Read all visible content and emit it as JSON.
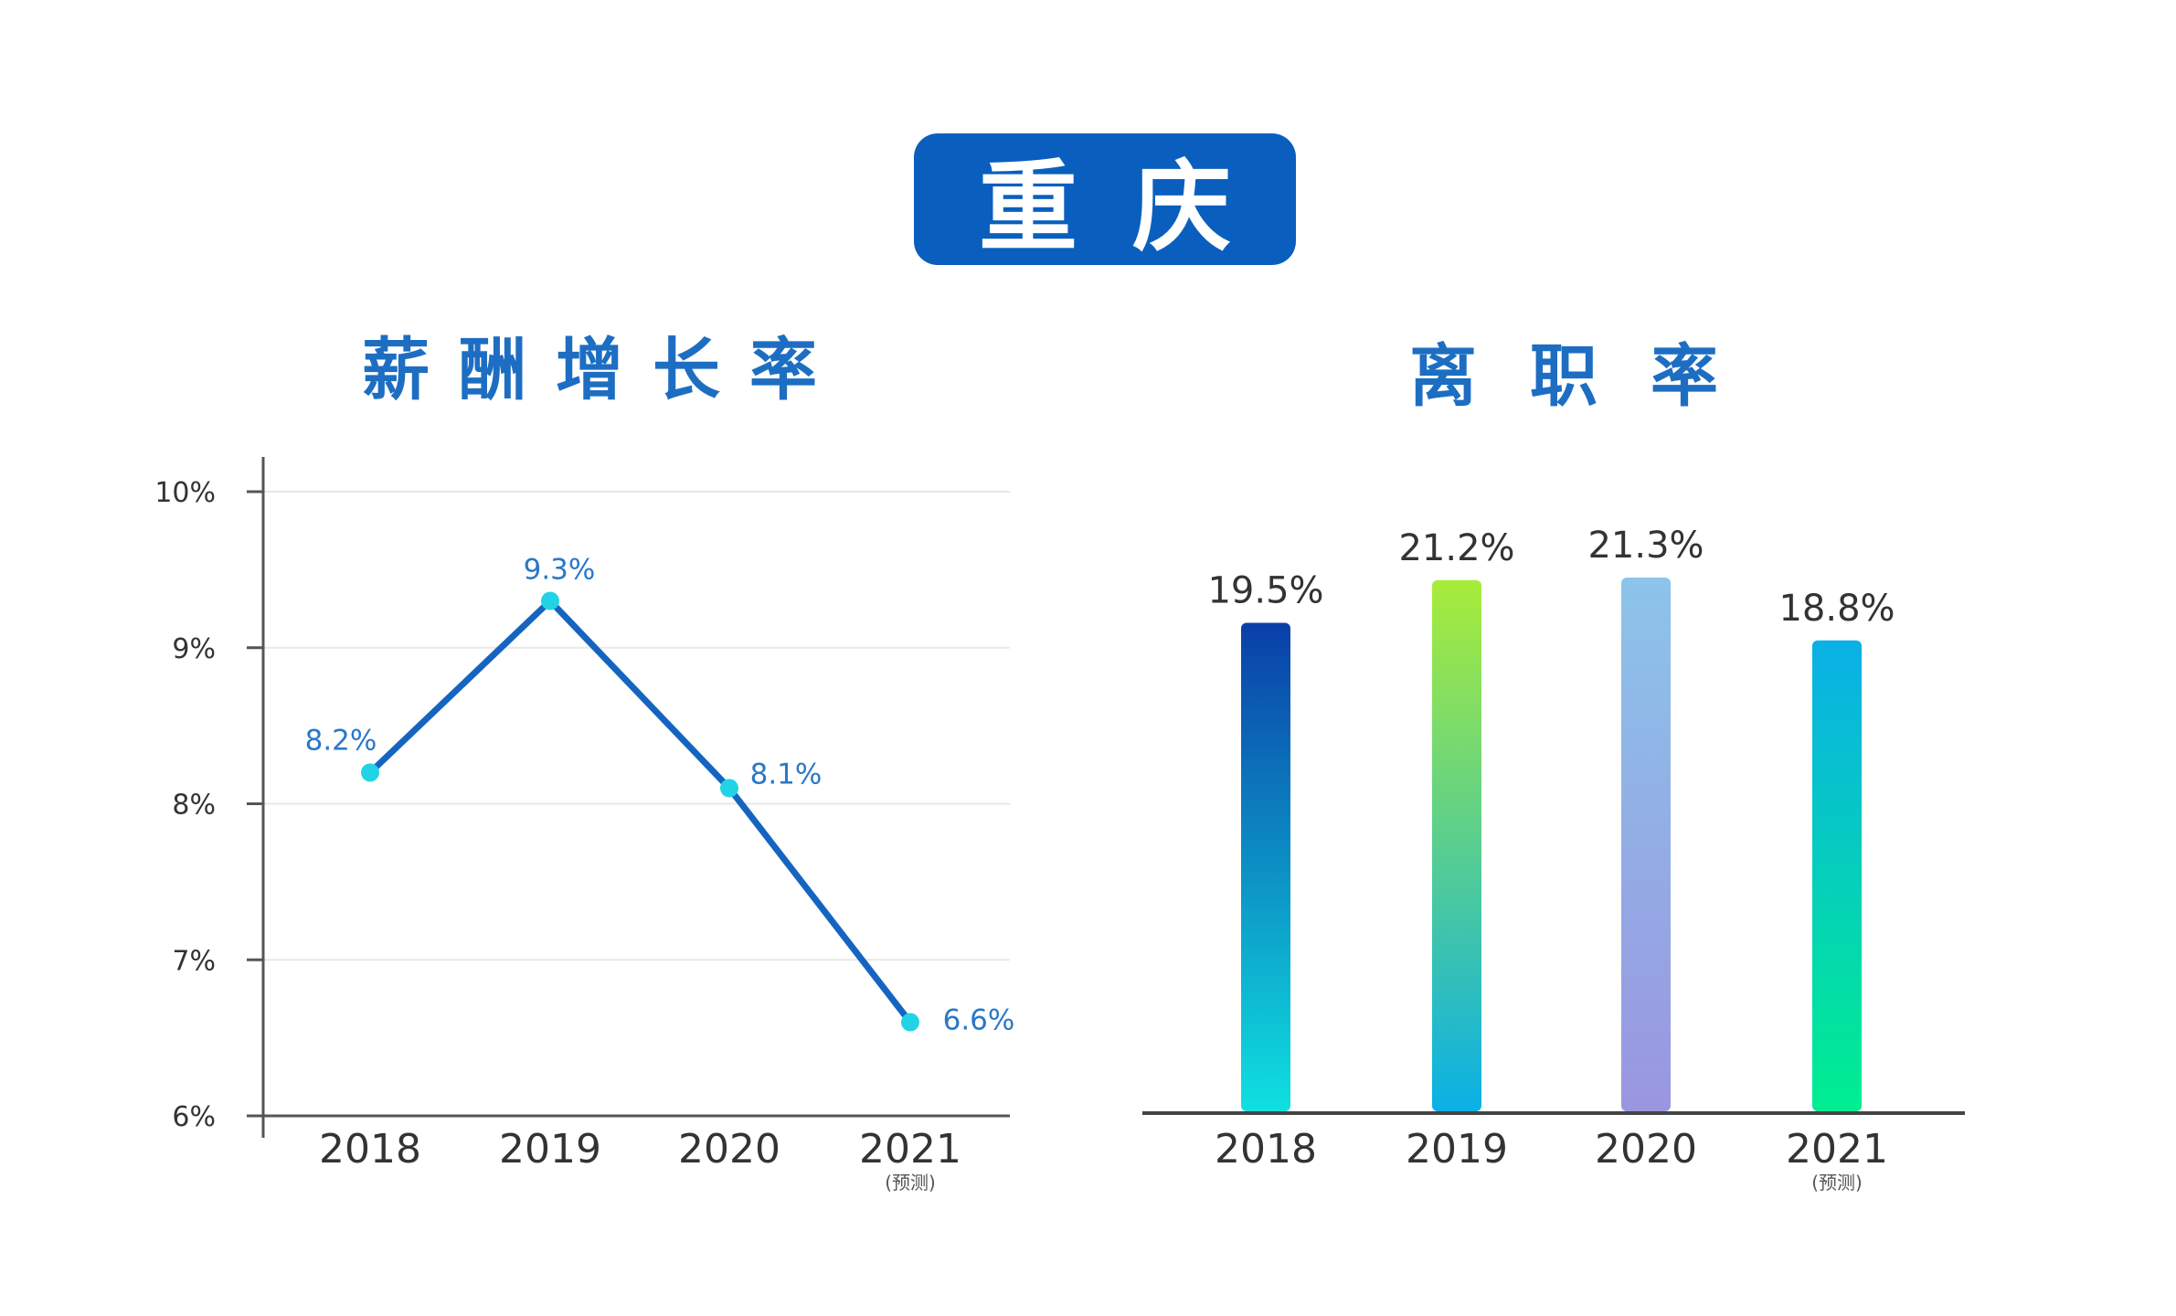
{
  "header": {
    "city": "重庆"
  },
  "chart_data": [
    {
      "type": "line",
      "title": "薪酬增长率",
      "categories": [
        "2018",
        "2019",
        "2020",
        "2021"
      ],
      "category_notes": [
        "",
        "",
        "",
        "(预测)"
      ],
      "values": [
        8.2,
        9.3,
        8.1,
        6.6
      ],
      "value_labels": [
        "8.2%",
        "9.3%",
        "8.1%",
        "6.6%"
      ],
      "ylim": [
        6,
        10
      ],
      "yticks": [
        6,
        7,
        8,
        9,
        10
      ],
      "ytick_labels": [
        "6%",
        "7%",
        "8%",
        "9%",
        "10%"
      ],
      "grid": true,
      "colors": {
        "line": "#1565c0",
        "marker": "#22d3e6",
        "label": "#2a78c8",
        "grid": "#e8e8e8",
        "axis": "#555555"
      }
    },
    {
      "type": "bar",
      "title": "离职率",
      "categories": [
        "2018",
        "2019",
        "2020",
        "2021"
      ],
      "category_notes": [
        "",
        "",
        "",
        "(预测)"
      ],
      "values": [
        19.5,
        21.2,
        21.3,
        18.8
      ],
      "value_labels": [
        "19.5%",
        "21.2%",
        "21.3%",
        "18.8%"
      ],
      "grid": false,
      "bar_gradients": [
        [
          "#0a3fa8",
          "#0fe0e0"
        ],
        [
          "#a8ec3a",
          "#0ab0e6"
        ],
        [
          "#8cc4ea",
          "#9a96e0"
        ],
        [
          "#0ab0e6",
          "#00ee90"
        ]
      ],
      "colors": {
        "label": "#333333",
        "axis": "#444444"
      }
    }
  ]
}
